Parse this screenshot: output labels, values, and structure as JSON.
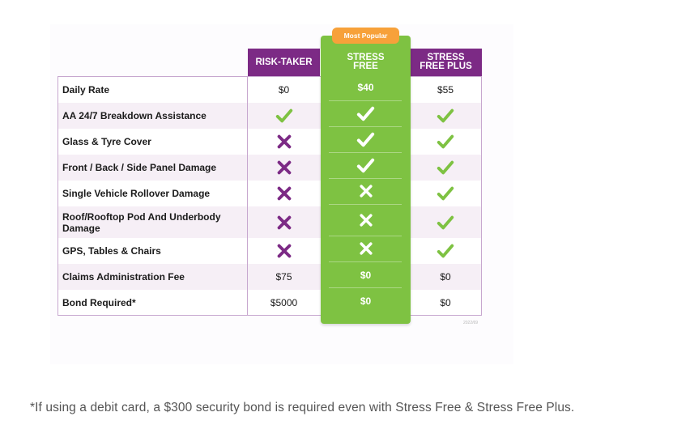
{
  "badge": "Most Popular",
  "columns": {
    "risk": "RISK-TAKER",
    "free": [
      "STRESS",
      "FREE"
    ],
    "plus": [
      "STRESS",
      "FREE PLUS"
    ]
  },
  "rows": [
    {
      "label": "Daily Rate",
      "risk": "$0",
      "free": "$40",
      "plus": "$55"
    },
    {
      "label": "AA 24/7 Breakdown Assistance",
      "risk": "check",
      "free": "check",
      "plus": "check"
    },
    {
      "label": "Glass & Tyre Cover",
      "risk": "cross",
      "free": "check",
      "plus": "check"
    },
    {
      "label": "Front / Back / Side Panel Damage",
      "risk": "cross",
      "free": "check",
      "plus": "check"
    },
    {
      "label": "Single Vehicle Rollover Damage",
      "risk": "cross",
      "free": "cross",
      "plus": "check"
    },
    {
      "label": "Roof/Rooftop Pod And Underbody Damage",
      "risk": "cross",
      "free": "cross",
      "plus": "check"
    },
    {
      "label": "GPS, Tables & Chairs",
      "risk": "cross",
      "free": "cross",
      "plus": "check"
    },
    {
      "label": "Claims Administration Fee",
      "risk": "$75",
      "free": "$0",
      "plus": "$0"
    },
    {
      "label": "Bond Required*",
      "risk": "$5000",
      "free": "$0",
      "plus": "$0"
    }
  ],
  "stamp": "2022/69",
  "footnote": "*If using a debit card, a $300 security bond is required even with Stress Free & Stress Free Plus.",
  "colors": {
    "purple": "#7c2a85",
    "green": "#7ec242",
    "orange": "#f7a13a",
    "check": "#7ec242",
    "cross": "#7c2a85"
  }
}
